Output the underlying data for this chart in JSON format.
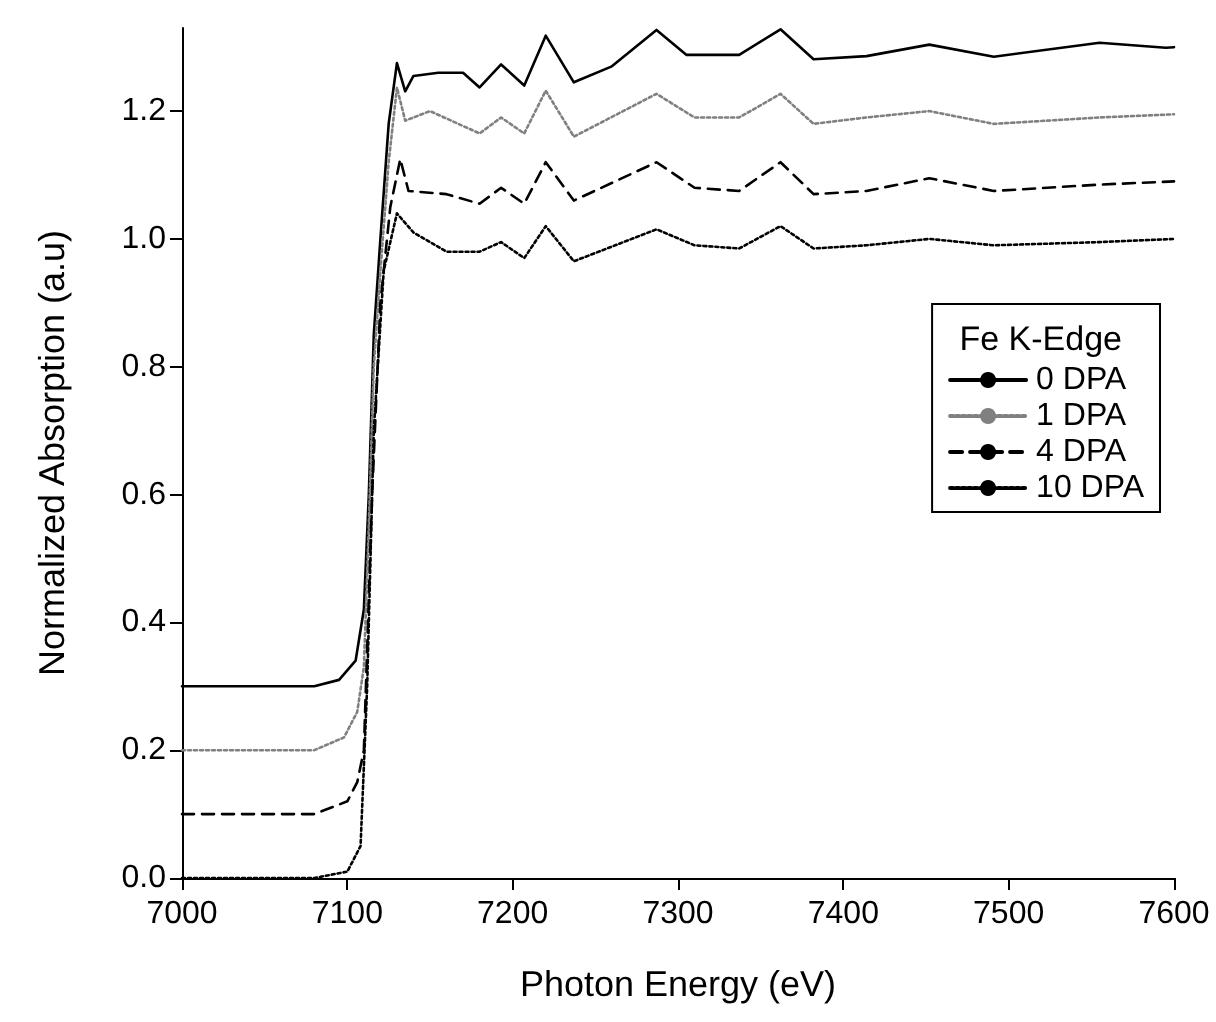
{
  "chart_data": {
    "type": "line",
    "xlabel": "Photon Energy (eV)",
    "ylabel": "Normalized Absorption (a.u)",
    "legend_title": "Fe K-Edge",
    "legend": "right",
    "grid": false,
    "marker": "none",
    "xlim": [
      7000,
      7600
    ],
    "xticks": [
      7000,
      7100,
      7200,
      7300,
      7400,
      7500,
      7600
    ],
    "ylim": [
      0,
      1.33
    ],
    "yticks": [
      {
        "value": 0,
        "label": "0.0"
      },
      {
        "value": 0.2,
        "label": "0.2"
      },
      {
        "value": 0.4,
        "label": "0.4"
      },
      {
        "value": 0.6,
        "label": "0.6"
      },
      {
        "value": 0.8,
        "label": "0.8"
      },
      {
        "value": 1,
        "label": "1.0"
      },
      {
        "value": 1.2,
        "label": "1.2"
      }
    ],
    "series": [
      {
        "name": "0 DPA",
        "color": "#000000",
        "line_style": "solid",
        "x": [
          7000,
          7040,
          7080,
          7095,
          7105,
          7110,
          7113,
          7116,
          7120,
          7125,
          7130,
          7135,
          7140,
          7155,
          7170,
          7180,
          7193,
          7207,
          7220,
          7237,
          7260,
          7287,
          7305,
          7337,
          7362,
          7382,
          7414,
          7452,
          7491,
          7555,
          7595,
          7600
        ],
        "values": [
          0.3,
          0.3,
          0.3,
          0.31,
          0.34,
          0.42,
          0.6,
          0.85,
          1.0,
          1.18,
          1.275,
          1.231,
          1.255,
          1.26,
          1.26,
          1.237,
          1.273,
          1.24,
          1.318,
          1.245,
          1.27,
          1.327,
          1.288,
          1.288,
          1.328,
          1.281,
          1.286,
          1.304,
          1.285,
          1.307,
          1.299,
          1.3
        ]
      },
      {
        "name": "1 DPA",
        "color": "#808080",
        "line_style": "dotted",
        "x": [
          7000,
          7040,
          7080,
          7098,
          7106,
          7110,
          7113,
          7116,
          7120,
          7125,
          7130,
          7135,
          7150,
          7180,
          7193,
          7207,
          7220,
          7237,
          7287,
          7310,
          7337,
          7362,
          7382,
          7414,
          7452,
          7491,
          7555,
          7600
        ],
        "values": [
          0.2,
          0.2,
          0.2,
          0.22,
          0.26,
          0.33,
          0.55,
          0.8,
          0.95,
          1.12,
          1.237,
          1.185,
          1.2,
          1.165,
          1.19,
          1.165,
          1.232,
          1.16,
          1.227,
          1.19,
          1.19,
          1.227,
          1.18,
          1.19,
          1.2,
          1.18,
          1.19,
          1.195
        ]
      },
      {
        "name": "4 DPA",
        "color": "#000000",
        "line_style": "dashed",
        "x": [
          7000,
          7040,
          7080,
          7100,
          7106,
          7110,
          7115,
          7120,
          7126,
          7132,
          7137,
          7160,
          7180,
          7193,
          7207,
          7220,
          7237,
          7287,
          7310,
          7337,
          7362,
          7382,
          7414,
          7452,
          7491,
          7555,
          7600
        ],
        "values": [
          0.1,
          0.1,
          0.1,
          0.12,
          0.15,
          0.2,
          0.6,
          0.9,
          1.05,
          1.125,
          1.075,
          1.07,
          1.055,
          1.08,
          1.055,
          1.12,
          1.06,
          1.12,
          1.08,
          1.075,
          1.12,
          1.07,
          1.075,
          1.095,
          1.075,
          1.085,
          1.09
        ]
      },
      {
        "name": "10 DPA",
        "color": "#000000",
        "line_style": "dotted",
        "x": [
          7000,
          7040,
          7080,
          7100,
          7108,
          7112,
          7116,
          7122,
          7130,
          7140,
          7160,
          7180,
          7193,
          7207,
          7220,
          7237,
          7287,
          7310,
          7337,
          7362,
          7382,
          7414,
          7452,
          7491,
          7555,
          7600
        ],
        "values": [
          0.0,
          0.0,
          0.0,
          0.01,
          0.05,
          0.3,
          0.7,
          0.95,
          1.04,
          1.01,
          0.98,
          0.98,
          0.995,
          0.97,
          1.02,
          0.965,
          1.015,
          0.99,
          0.985,
          1.02,
          0.985,
          0.99,
          1.0,
          0.99,
          0.995,
          1.0
        ]
      }
    ]
  }
}
